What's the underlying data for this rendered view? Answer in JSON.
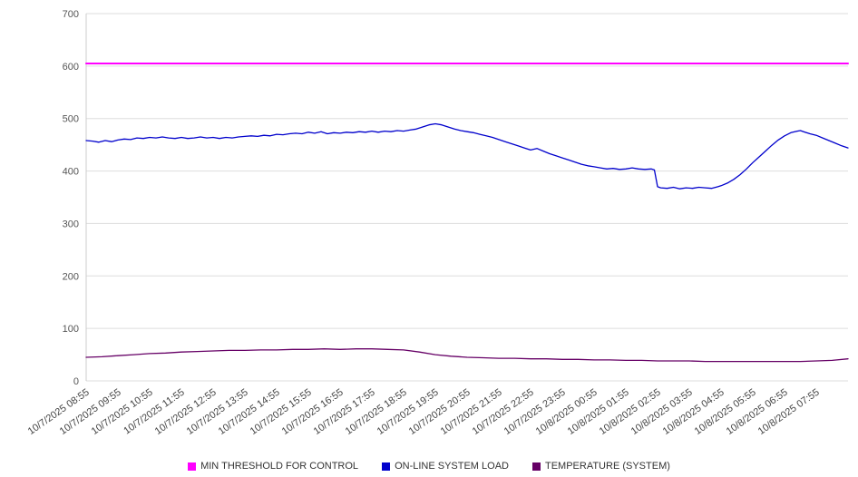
{
  "chart_data": {
    "type": "line",
    "title": "",
    "xlabel": "",
    "ylabel": "",
    "ylim": [
      0,
      700
    ],
    "xlim": [
      0,
      24
    ],
    "yticks": [
      0,
      100,
      200,
      300,
      400,
      500,
      600,
      700
    ],
    "grid": true,
    "legend_position": "bottom",
    "categories": [
      "10/7/2025 08:55",
      "10/7/2025 09:55",
      "10/7/2025 10:55",
      "10/7/2025 11:55",
      "10/7/2025 12:55",
      "10/7/2025 13:55",
      "10/7/2025 14:55",
      "10/7/2025 15:55",
      "10/7/2025 16:55",
      "10/7/2025 17:55",
      "10/7/2025 18:55",
      "10/7/2025 19:55",
      "10/7/2025 20:55",
      "10/7/2025 21:55",
      "10/7/2025 22:55",
      "10/7/2025 23:55",
      "10/8/2025 00:55",
      "10/8/2025 01:55",
      "10/8/2025 02:55",
      "10/8/2025 03:55",
      "10/8/2025 04:55",
      "10/8/2025 05:55",
      "10/8/2025 06:55",
      "10/8/2025 07:55"
    ],
    "series": [
      {
        "name": "MIN THRESHOLD FOR CONTROL",
        "color": "#ff00ff",
        "width": 2,
        "points": [
          [
            0,
            605
          ],
          [
            24,
            605
          ]
        ]
      },
      {
        "name": "ON-LINE SYSTEM LOAD",
        "color": "#0000cc",
        "width": 1.3,
        "points": [
          [
            0,
            458
          ],
          [
            0.2,
            457
          ],
          [
            0.4,
            455
          ],
          [
            0.6,
            458
          ],
          [
            0.8,
            456
          ],
          [
            1,
            459
          ],
          [
            1.2,
            461
          ],
          [
            1.4,
            460
          ],
          [
            1.6,
            463
          ],
          [
            1.8,
            462
          ],
          [
            2,
            464
          ],
          [
            2.2,
            463
          ],
          [
            2.4,
            465
          ],
          [
            2.6,
            463
          ],
          [
            2.8,
            462
          ],
          [
            3,
            464
          ],
          [
            3.2,
            462
          ],
          [
            3.4,
            463
          ],
          [
            3.6,
            465
          ],
          [
            3.8,
            463
          ],
          [
            4,
            464
          ],
          [
            4.2,
            462
          ],
          [
            4.4,
            464
          ],
          [
            4.6,
            463
          ],
          [
            4.8,
            465
          ],
          [
            5,
            466
          ],
          [
            5.2,
            467
          ],
          [
            5.4,
            466
          ],
          [
            5.6,
            468
          ],
          [
            5.8,
            467
          ],
          [
            6,
            470
          ],
          [
            6.2,
            469
          ],
          [
            6.4,
            471
          ],
          [
            6.6,
            472
          ],
          [
            6.8,
            471
          ],
          [
            7,
            474
          ],
          [
            7.2,
            472
          ],
          [
            7.4,
            475
          ],
          [
            7.6,
            471
          ],
          [
            7.8,
            473
          ],
          [
            8,
            472
          ],
          [
            8.2,
            474
          ],
          [
            8.4,
            473
          ],
          [
            8.6,
            475
          ],
          [
            8.8,
            474
          ],
          [
            9,
            476
          ],
          [
            9.2,
            474
          ],
          [
            9.4,
            476
          ],
          [
            9.6,
            475
          ],
          [
            9.8,
            477
          ],
          [
            10,
            476
          ],
          [
            10.2,
            478
          ],
          [
            10.4,
            480
          ],
          [
            10.6,
            484
          ],
          [
            10.8,
            488
          ],
          [
            11,
            490
          ],
          [
            11.2,
            488
          ],
          [
            11.4,
            484
          ],
          [
            11.6,
            480
          ],
          [
            11.8,
            477
          ],
          [
            12,
            475
          ],
          [
            12.2,
            473
          ],
          [
            12.4,
            470
          ],
          [
            12.6,
            467
          ],
          [
            12.8,
            464
          ],
          [
            13,
            460
          ],
          [
            13.2,
            456
          ],
          [
            13.4,
            452
          ],
          [
            13.6,
            448
          ],
          [
            13.8,
            444
          ],
          [
            14,
            440
          ],
          [
            14.2,
            443
          ],
          [
            14.4,
            438
          ],
          [
            14.6,
            433
          ],
          [
            14.8,
            429
          ],
          [
            15,
            425
          ],
          [
            15.2,
            421
          ],
          [
            15.4,
            417
          ],
          [
            15.6,
            413
          ],
          [
            15.8,
            410
          ],
          [
            16,
            408
          ],
          [
            16.2,
            406
          ],
          [
            16.4,
            404
          ],
          [
            16.6,
            405
          ],
          [
            16.8,
            403
          ],
          [
            17,
            404
          ],
          [
            17.2,
            406
          ],
          [
            17.4,
            404
          ],
          [
            17.6,
            403
          ],
          [
            17.8,
            404
          ],
          [
            17.9,
            402
          ],
          [
            18,
            370
          ],
          [
            18.1,
            368
          ],
          [
            18.3,
            367
          ],
          [
            18.5,
            369
          ],
          [
            18.7,
            366
          ],
          [
            18.9,
            368
          ],
          [
            19.1,
            367
          ],
          [
            19.3,
            369
          ],
          [
            19.5,
            368
          ],
          [
            19.7,
            367
          ],
          [
            19.9,
            370
          ],
          [
            20,
            372
          ],
          [
            20.2,
            377
          ],
          [
            20.4,
            384
          ],
          [
            20.6,
            393
          ],
          [
            20.8,
            404
          ],
          [
            21,
            416
          ],
          [
            21.2,
            427
          ],
          [
            21.4,
            438
          ],
          [
            21.6,
            449
          ],
          [
            21.8,
            459
          ],
          [
            22,
            467
          ],
          [
            22.2,
            473
          ],
          [
            22.4,
            476
          ],
          [
            22.5,
            477
          ],
          [
            22.6,
            475
          ],
          [
            22.8,
            471
          ],
          [
            23,
            468
          ],
          [
            23.2,
            463
          ],
          [
            23.4,
            458
          ],
          [
            23.6,
            453
          ],
          [
            23.8,
            448
          ],
          [
            24,
            444
          ]
        ]
      },
      {
        "name": "TEMPERATURE (SYSTEM)",
        "color": "#660066",
        "width": 1.3,
        "points": [
          [
            0,
            45
          ],
          [
            0.5,
            46
          ],
          [
            1,
            48
          ],
          [
            1.5,
            50
          ],
          [
            2,
            52
          ],
          [
            2.5,
            53
          ],
          [
            3,
            55
          ],
          [
            3.5,
            56
          ],
          [
            4,
            57
          ],
          [
            4.5,
            58
          ],
          [
            5,
            58
          ],
          [
            5.5,
            59
          ],
          [
            6,
            59
          ],
          [
            6.5,
            60
          ],
          [
            7,
            60
          ],
          [
            7.5,
            61
          ],
          [
            8,
            60
          ],
          [
            8.5,
            61
          ],
          [
            9,
            61
          ],
          [
            9.5,
            60
          ],
          [
            10,
            59
          ],
          [
            10.5,
            55
          ],
          [
            11,
            50
          ],
          [
            11.5,
            47
          ],
          [
            12,
            45
          ],
          [
            12.5,
            44
          ],
          [
            13,
            43
          ],
          [
            13.5,
            43
          ],
          [
            14,
            42
          ],
          [
            14.5,
            42
          ],
          [
            15,
            41
          ],
          [
            15.5,
            41
          ],
          [
            16,
            40
          ],
          [
            16.5,
            40
          ],
          [
            17,
            39
          ],
          [
            17.5,
            39
          ],
          [
            18,
            38
          ],
          [
            18.5,
            38
          ],
          [
            19,
            38
          ],
          [
            19.5,
            37
          ],
          [
            20,
            37
          ],
          [
            20.5,
            37
          ],
          [
            21,
            37
          ],
          [
            21.5,
            37
          ],
          [
            22,
            37
          ],
          [
            22.5,
            37
          ],
          [
            23,
            38
          ],
          [
            23.5,
            39
          ],
          [
            24,
            42
          ]
        ]
      }
    ],
    "styles": {
      "grid_color": "#dddddd",
      "axis_color": "#cccccc",
      "tick_label_color": "#555555",
      "x_label_color": "#444444",
      "background": "#ffffff"
    }
  }
}
